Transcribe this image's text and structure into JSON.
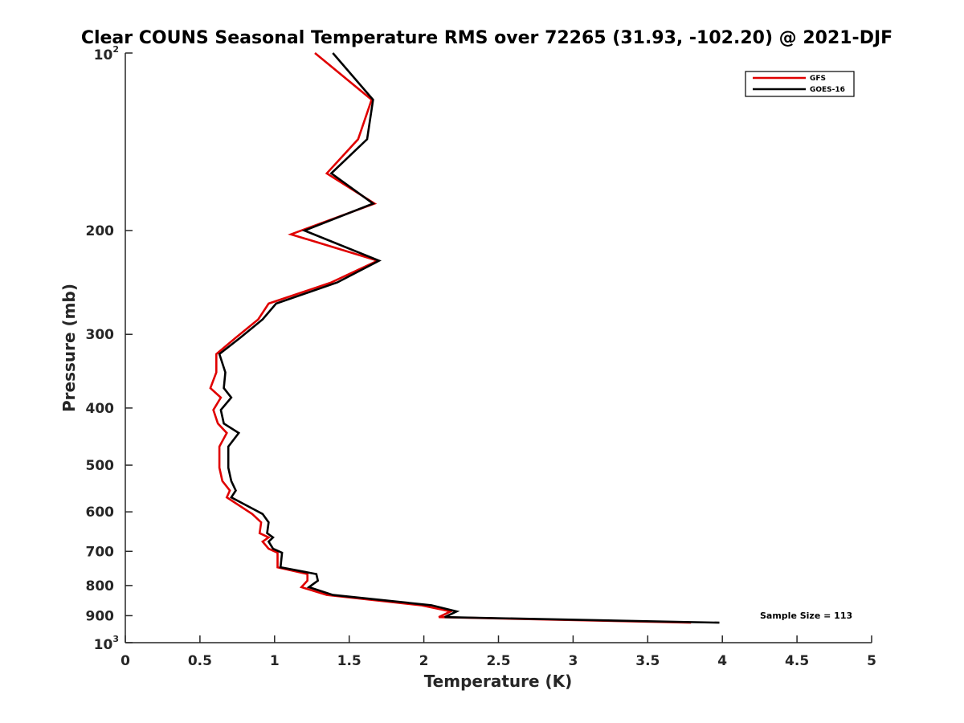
{
  "chart_data": {
    "type": "line",
    "title": "Clear COUNS Seasonal Temperature RMS over 72265 (31.93, -102.20) @ 2021-DJF",
    "xlabel": "Temperature (K)",
    "ylabel": "Pressure (mb)",
    "xlim": [
      0,
      5
    ],
    "ylim": [
      100,
      1000
    ],
    "y_scale": "log",
    "y_reversed": true,
    "x_ticks": [
      "0",
      "0.5",
      "1",
      "1.5",
      "2",
      "2.5",
      "3",
      "3.5",
      "4",
      "4.5",
      "5"
    ],
    "y_ticks": [
      {
        "value": 100,
        "base": "10",
        "exp": "2"
      },
      {
        "value": 200,
        "label": "200"
      },
      {
        "value": 300,
        "label": "300"
      },
      {
        "value": 400,
        "label": "400"
      },
      {
        "value": 500,
        "label": "500"
      },
      {
        "value": 600,
        "label": "600"
      },
      {
        "value": 700,
        "label": "700"
      },
      {
        "value": 800,
        "label": "800"
      },
      {
        "value": 900,
        "label": "900"
      },
      {
        "value": 1000,
        "base": "10",
        "exp": "3"
      }
    ],
    "grid": false,
    "legend_position": "top-right",
    "annotation": "Sample Size = 113",
    "series": [
      {
        "name": "GFS",
        "color": "#e00000",
        "points": [
          [
            1.27,
            100
          ],
          [
            1.65,
            120
          ],
          [
            1.56,
            140
          ],
          [
            1.35,
            160
          ],
          [
            1.67,
            180
          ],
          [
            1.11,
            203
          ],
          [
            1.69,
            225
          ],
          [
            1.38,
            245
          ],
          [
            0.96,
            266
          ],
          [
            0.89,
            283
          ],
          [
            0.74,
            304
          ],
          [
            0.61,
            324
          ],
          [
            0.61,
            348
          ],
          [
            0.57,
            370
          ],
          [
            0.64,
            384
          ],
          [
            0.59,
            403
          ],
          [
            0.62,
            425
          ],
          [
            0.68,
            441
          ],
          [
            0.63,
            465
          ],
          [
            0.63,
            505
          ],
          [
            0.65,
            532
          ],
          [
            0.7,
            552
          ],
          [
            0.68,
            567
          ],
          [
            0.85,
            605
          ],
          [
            0.91,
            625
          ],
          [
            0.9,
            652
          ],
          [
            0.96,
            663
          ],
          [
            0.92,
            674
          ],
          [
            0.96,
            693
          ],
          [
            1.02,
            704
          ],
          [
            1.02,
            745
          ],
          [
            1.22,
            765
          ],
          [
            1.22,
            785
          ],
          [
            1.18,
            805
          ],
          [
            1.35,
            830
          ],
          [
            1.98,
            864
          ],
          [
            2.18,
            885
          ],
          [
            2.1,
            905
          ],
          [
            3.79,
            925
          ]
        ]
      },
      {
        "name": "GOES-16",
        "color": "#000000",
        "points": [
          [
            1.39,
            100
          ],
          [
            1.66,
            120
          ],
          [
            1.62,
            140
          ],
          [
            1.38,
            160
          ],
          [
            1.66,
            180
          ],
          [
            1.2,
            200
          ],
          [
            1.7,
            225
          ],
          [
            1.42,
            245
          ],
          [
            1.01,
            266
          ],
          [
            0.92,
            283
          ],
          [
            0.77,
            304
          ],
          [
            0.63,
            324
          ],
          [
            0.67,
            348
          ],
          [
            0.66,
            370
          ],
          [
            0.71,
            384
          ],
          [
            0.64,
            403
          ],
          [
            0.66,
            425
          ],
          [
            0.76,
            441
          ],
          [
            0.69,
            465
          ],
          [
            0.69,
            505
          ],
          [
            0.71,
            532
          ],
          [
            0.74,
            552
          ],
          [
            0.71,
            567
          ],
          [
            0.92,
            605
          ],
          [
            0.96,
            625
          ],
          [
            0.95,
            652
          ],
          [
            0.99,
            663
          ],
          [
            0.96,
            674
          ],
          [
            0.99,
            693
          ],
          [
            1.05,
            704
          ],
          [
            1.04,
            745
          ],
          [
            1.28,
            765
          ],
          [
            1.29,
            785
          ],
          [
            1.23,
            805
          ],
          [
            1.39,
            830
          ],
          [
            2.05,
            864
          ],
          [
            2.22,
            885
          ],
          [
            2.14,
            905
          ],
          [
            3.98,
            925
          ]
        ]
      }
    ]
  }
}
